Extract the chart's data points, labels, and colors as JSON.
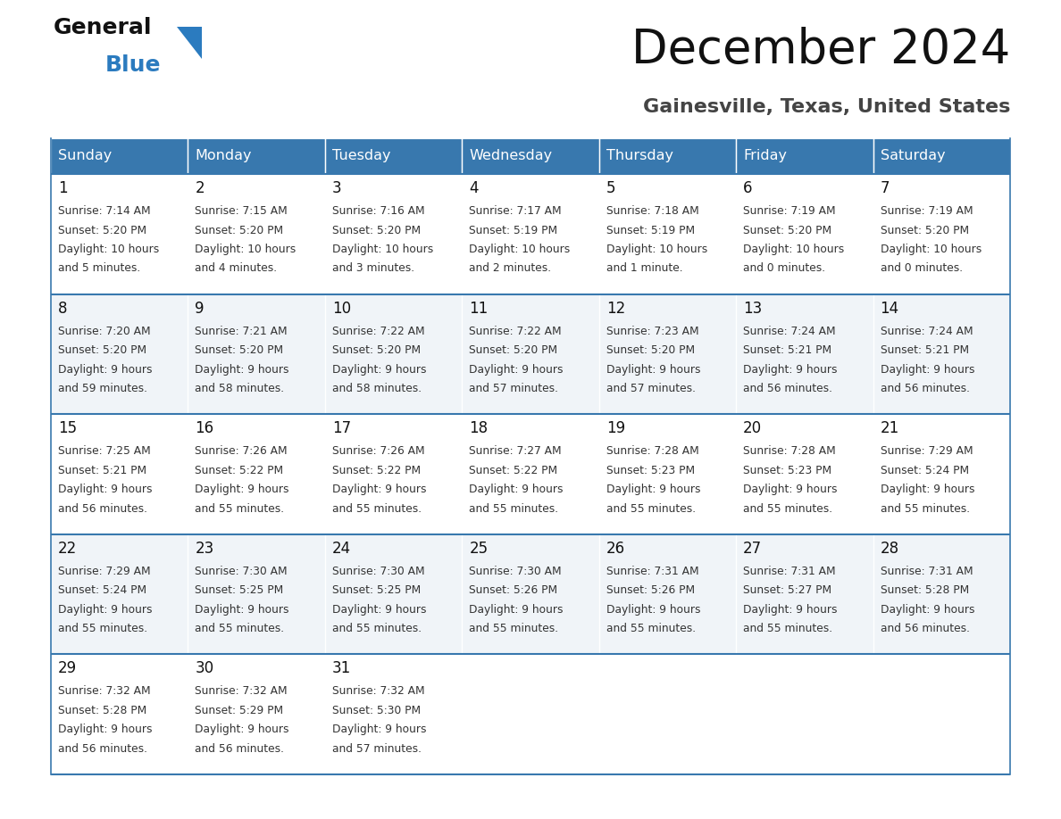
{
  "title": "December 2024",
  "subtitle": "Gainesville, Texas, United States",
  "header_color": "#3878ae",
  "header_text_color": "#ffffff",
  "cell_bg_color": "#ffffff",
  "border_color": "#3878ae",
  "text_color": "#333333",
  "day_headers": [
    "Sunday",
    "Monday",
    "Tuesday",
    "Wednesday",
    "Thursday",
    "Friday",
    "Saturday"
  ],
  "weeks": [
    [
      {
        "day": 1,
        "sunrise": "7:14 AM",
        "sunset": "5:20 PM",
        "daylight": "10 hours\nand 5 minutes."
      },
      {
        "day": 2,
        "sunrise": "7:15 AM",
        "sunset": "5:20 PM",
        "daylight": "10 hours\nand 4 minutes."
      },
      {
        "day": 3,
        "sunrise": "7:16 AM",
        "sunset": "5:20 PM",
        "daylight": "10 hours\nand 3 minutes."
      },
      {
        "day": 4,
        "sunrise": "7:17 AM",
        "sunset": "5:19 PM",
        "daylight": "10 hours\nand 2 minutes."
      },
      {
        "day": 5,
        "sunrise": "7:18 AM",
        "sunset": "5:19 PM",
        "daylight": "10 hours\nand 1 minute."
      },
      {
        "day": 6,
        "sunrise": "7:19 AM",
        "sunset": "5:20 PM",
        "daylight": "10 hours\nand 0 minutes."
      },
      {
        "day": 7,
        "sunrise": "7:19 AM",
        "sunset": "5:20 PM",
        "daylight": "10 hours\nand 0 minutes."
      }
    ],
    [
      {
        "day": 8,
        "sunrise": "7:20 AM",
        "sunset": "5:20 PM",
        "daylight": "9 hours\nand 59 minutes."
      },
      {
        "day": 9,
        "sunrise": "7:21 AM",
        "sunset": "5:20 PM",
        "daylight": "9 hours\nand 58 minutes."
      },
      {
        "day": 10,
        "sunrise": "7:22 AM",
        "sunset": "5:20 PM",
        "daylight": "9 hours\nand 58 minutes."
      },
      {
        "day": 11,
        "sunrise": "7:22 AM",
        "sunset": "5:20 PM",
        "daylight": "9 hours\nand 57 minutes."
      },
      {
        "day": 12,
        "sunrise": "7:23 AM",
        "sunset": "5:20 PM",
        "daylight": "9 hours\nand 57 minutes."
      },
      {
        "day": 13,
        "sunrise": "7:24 AM",
        "sunset": "5:21 PM",
        "daylight": "9 hours\nand 56 minutes."
      },
      {
        "day": 14,
        "sunrise": "7:24 AM",
        "sunset": "5:21 PM",
        "daylight": "9 hours\nand 56 minutes."
      }
    ],
    [
      {
        "day": 15,
        "sunrise": "7:25 AM",
        "sunset": "5:21 PM",
        "daylight": "9 hours\nand 56 minutes."
      },
      {
        "day": 16,
        "sunrise": "7:26 AM",
        "sunset": "5:22 PM",
        "daylight": "9 hours\nand 55 minutes."
      },
      {
        "day": 17,
        "sunrise": "7:26 AM",
        "sunset": "5:22 PM",
        "daylight": "9 hours\nand 55 minutes."
      },
      {
        "day": 18,
        "sunrise": "7:27 AM",
        "sunset": "5:22 PM",
        "daylight": "9 hours\nand 55 minutes."
      },
      {
        "day": 19,
        "sunrise": "7:28 AM",
        "sunset": "5:23 PM",
        "daylight": "9 hours\nand 55 minutes."
      },
      {
        "day": 20,
        "sunrise": "7:28 AM",
        "sunset": "5:23 PM",
        "daylight": "9 hours\nand 55 minutes."
      },
      {
        "day": 21,
        "sunrise": "7:29 AM",
        "sunset": "5:24 PM",
        "daylight": "9 hours\nand 55 minutes."
      }
    ],
    [
      {
        "day": 22,
        "sunrise": "7:29 AM",
        "sunset": "5:24 PM",
        "daylight": "9 hours\nand 55 minutes."
      },
      {
        "day": 23,
        "sunrise": "7:30 AM",
        "sunset": "5:25 PM",
        "daylight": "9 hours\nand 55 minutes."
      },
      {
        "day": 24,
        "sunrise": "7:30 AM",
        "sunset": "5:25 PM",
        "daylight": "9 hours\nand 55 minutes."
      },
      {
        "day": 25,
        "sunrise": "7:30 AM",
        "sunset": "5:26 PM",
        "daylight": "9 hours\nand 55 minutes."
      },
      {
        "day": 26,
        "sunrise": "7:31 AM",
        "sunset": "5:26 PM",
        "daylight": "9 hours\nand 55 minutes."
      },
      {
        "day": 27,
        "sunrise": "7:31 AM",
        "sunset": "5:27 PM",
        "daylight": "9 hours\nand 55 minutes."
      },
      {
        "day": 28,
        "sunrise": "7:31 AM",
        "sunset": "5:28 PM",
        "daylight": "9 hours\nand 56 minutes."
      }
    ],
    [
      {
        "day": 29,
        "sunrise": "7:32 AM",
        "sunset": "5:28 PM",
        "daylight": "9 hours\nand 56 minutes."
      },
      {
        "day": 30,
        "sunrise": "7:32 AM",
        "sunset": "5:29 PM",
        "daylight": "9 hours\nand 56 minutes."
      },
      {
        "day": 31,
        "sunrise": "7:32 AM",
        "sunset": "5:30 PM",
        "daylight": "9 hours\nand 57 minutes."
      },
      null,
      null,
      null,
      null
    ]
  ],
  "logo_general_color": "#111111",
  "logo_blue_color": "#2b7bbf",
  "logo_triangle_color": "#2b7bbf",
  "title_color": "#111111",
  "subtitle_color": "#444444",
  "fig_width": 11.88,
  "fig_height": 9.18
}
